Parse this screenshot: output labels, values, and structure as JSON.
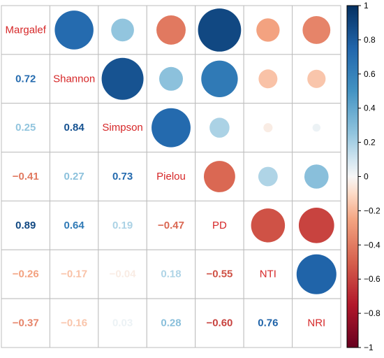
{
  "chart_data": {
    "type": "heatmap",
    "variables": [
      "Margalef",
      "Shannon",
      "Simpson",
      "Pielou",
      "PD",
      "NTI",
      "NRI"
    ],
    "matrix": [
      [
        1.0,
        0.72,
        0.25,
        -0.41,
        0.89,
        -0.26,
        -0.37
      ],
      [
        0.72,
        1.0,
        0.84,
        0.27,
        0.64,
        -0.17,
        -0.16
      ],
      [
        0.25,
        0.84,
        1.0,
        0.73,
        0.19,
        -0.04,
        0.03
      ],
      [
        -0.41,
        0.27,
        0.73,
        1.0,
        -0.47,
        0.18,
        0.28
      ],
      [
        0.89,
        0.64,
        0.19,
        -0.47,
        1.0,
        -0.55,
        -0.6
      ],
      [
        -0.26,
        -0.17,
        -0.04,
        0.18,
        -0.55,
        1.0,
        0.76
      ],
      [
        -0.37,
        -0.16,
        0.03,
        0.28,
        -0.6,
        0.76,
        1.0
      ]
    ],
    "upper_triangle": "circles",
    "lower_triangle": "coefficients",
    "diagonal": "variable names",
    "color_scale": {
      "range": [
        -1,
        1
      ],
      "ticks": [
        "1",
        "0.8",
        "0.6",
        "0.4",
        "0.2",
        "0",
        "−0.2",
        "−0.4",
        "−0.6",
        "−0.8",
        "−1"
      ],
      "stops": [
        {
          "value": -1.0,
          "color": "#67001f"
        },
        {
          "value": -0.75,
          "color": "#b2182b"
        },
        {
          "value": -0.5,
          "color": "#d6604d"
        },
        {
          "value": -0.25,
          "color": "#f4a582"
        },
        {
          "value": -0.1,
          "color": "#fddbc7"
        },
        {
          "value": 0.0,
          "color": "#f7f7f7"
        },
        {
          "value": 0.1,
          "color": "#d1e5f0"
        },
        {
          "value": 0.25,
          "color": "#92c5de"
        },
        {
          "value": 0.5,
          "color": "#4393c3"
        },
        {
          "value": 0.75,
          "color": "#2166ac"
        },
        {
          "value": 1.0,
          "color": "#053061"
        }
      ]
    },
    "label_color": "#d62728",
    "grid": true,
    "legend_position": "right"
  }
}
